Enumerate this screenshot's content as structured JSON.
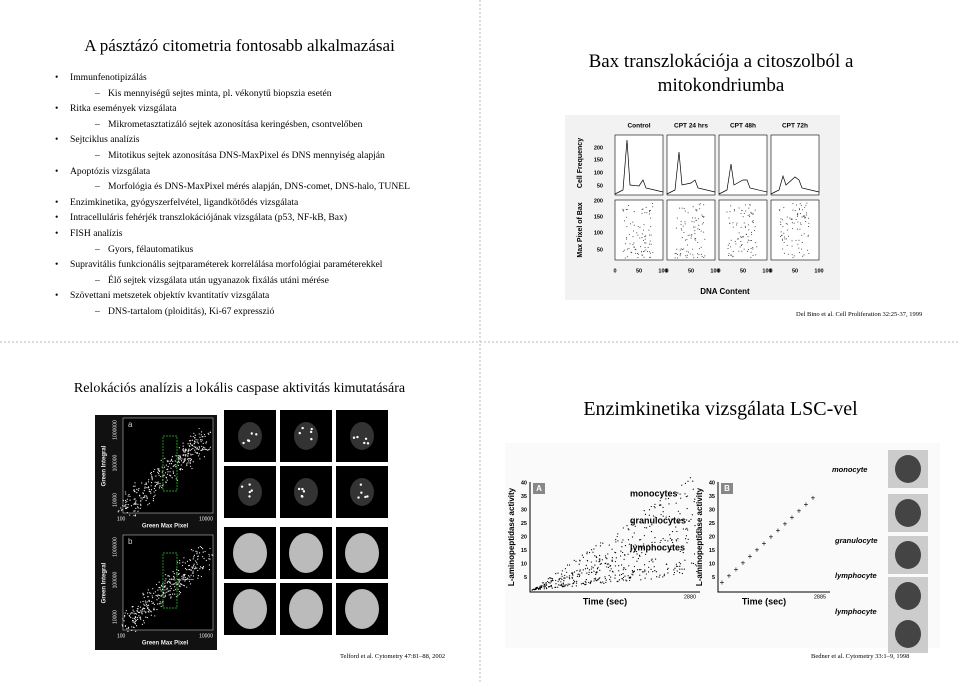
{
  "slides": [
    {
      "title": "A pásztázó citometria fontosabb alkalmazásai",
      "items": [
        {
          "text": "Immunfenotipizálás",
          "sub": [
            "Kis mennyiségű sejtes minta, pl. vékonytű biopszia esetén"
          ]
        },
        {
          "text": "Ritka események vizsgálata",
          "sub": [
            "Mikrometasztatizáló sejtek azonosítása keringésben, csontvelőben"
          ]
        },
        {
          "text": "Sejtciklus analízis",
          "sub": [
            "Mitotikus sejtek azonosítása DNS-MaxPixel és DNS mennyiség alapján"
          ]
        },
        {
          "text": "Apoptózis vizsgálata",
          "sub": [
            "Morfológia és DNS-MaxPixel mérés alapján, DNS-comet, DNS-halo, TUNEL"
          ]
        },
        {
          "text": "Enzimkinetika, gyógyszerfelvétel, ligandkötődés vizsgálata",
          "sub": []
        },
        {
          "text": "Intracelluláris fehérjék transzlokációjának vizsgálata (p53, NF-kB, Bax)",
          "sub": []
        },
        {
          "text": "FISH analízis",
          "sub": [
            "Gyors, félautomatikus"
          ]
        },
        {
          "text": "Supravitális funkcionális sejtparaméterek korrelálása morfológiai paraméterekkel",
          "sub": [
            "Élő sejtek vizsgálata után ugyanazok fixálás utáni mérése"
          ]
        },
        {
          "text": "Szövettani metszetek objektív kvantitatív vizsgálata",
          "sub": [
            "DNS-tartalom (ploiditás), Ki-67 expresszió"
          ]
        }
      ]
    },
    {
      "title": "Bax transzlokációja a citoszolból a mitokondriumba",
      "figure": {
        "columns": [
          "Control",
          "CPT 24 hrs",
          "CPT 48h",
          "CPT 72h"
        ],
        "y_label_top": "Cell Frequency",
        "y_label_bottom": "Max Pixel of Bax",
        "yticks_top": [
          "200",
          "150",
          "100",
          "50"
        ],
        "yticks_bottom": [
          "200",
          "150",
          "100",
          "50"
        ],
        "xticks": [
          "0",
          "50",
          "100"
        ],
        "x_label": "DNA Content"
      },
      "citation": "Del Bino et al. Cell Proliferation 32:25-37, 1999"
    },
    {
      "title": "Relokációs analízis a lokális caspase aktivitás kimutatására",
      "figure": {
        "panels": [
          {
            "letter": "a",
            "y_label": "Green Integral",
            "x_label": "Green Max Pixel",
            "yticks": [
              "1000000",
              "100000",
              "10000"
            ],
            "xticks": [
              "100",
              "10000"
            ]
          },
          {
            "letter": "b",
            "y_label": "Green Integral",
            "x_label": "Green Max Pixel",
            "yticks": [
              "1000000",
              "100000",
              "10000"
            ],
            "xticks": [
              "100",
              "10000"
            ]
          }
        ]
      },
      "citation": "Telford et al. Cytometry 47:81–88, 2002"
    },
    {
      "title": "Enzimkinetika vizsgálata LSC-vel",
      "figure": {
        "panels": [
          {
            "letter": "A",
            "y_label": "L-aminopeptidase activity",
            "x_label": "Time (sec)",
            "yticks": [
              "40",
              "35",
              "30",
              "25",
              "20",
              "15",
              "10",
              "5"
            ],
            "xtick": "2880",
            "labels": [
              "monocytes",
              "granulocytes",
              "lymphocytes"
            ]
          },
          {
            "letter": "B",
            "y_label": "L-aminopeptidase activity",
            "x_label": "Time (sec)",
            "yticks": [
              "40",
              "35",
              "30",
              "25",
              "20",
              "15",
              "10",
              "5"
            ],
            "xtick": "2885",
            "labels": []
          }
        ],
        "cell_labels": [
          "monocyte",
          "granulocyte",
          "lymphocyte",
          "lymphocyte"
        ]
      },
      "citation": "Bedner et al. Cytometry 33:1–9, 1998"
    }
  ]
}
